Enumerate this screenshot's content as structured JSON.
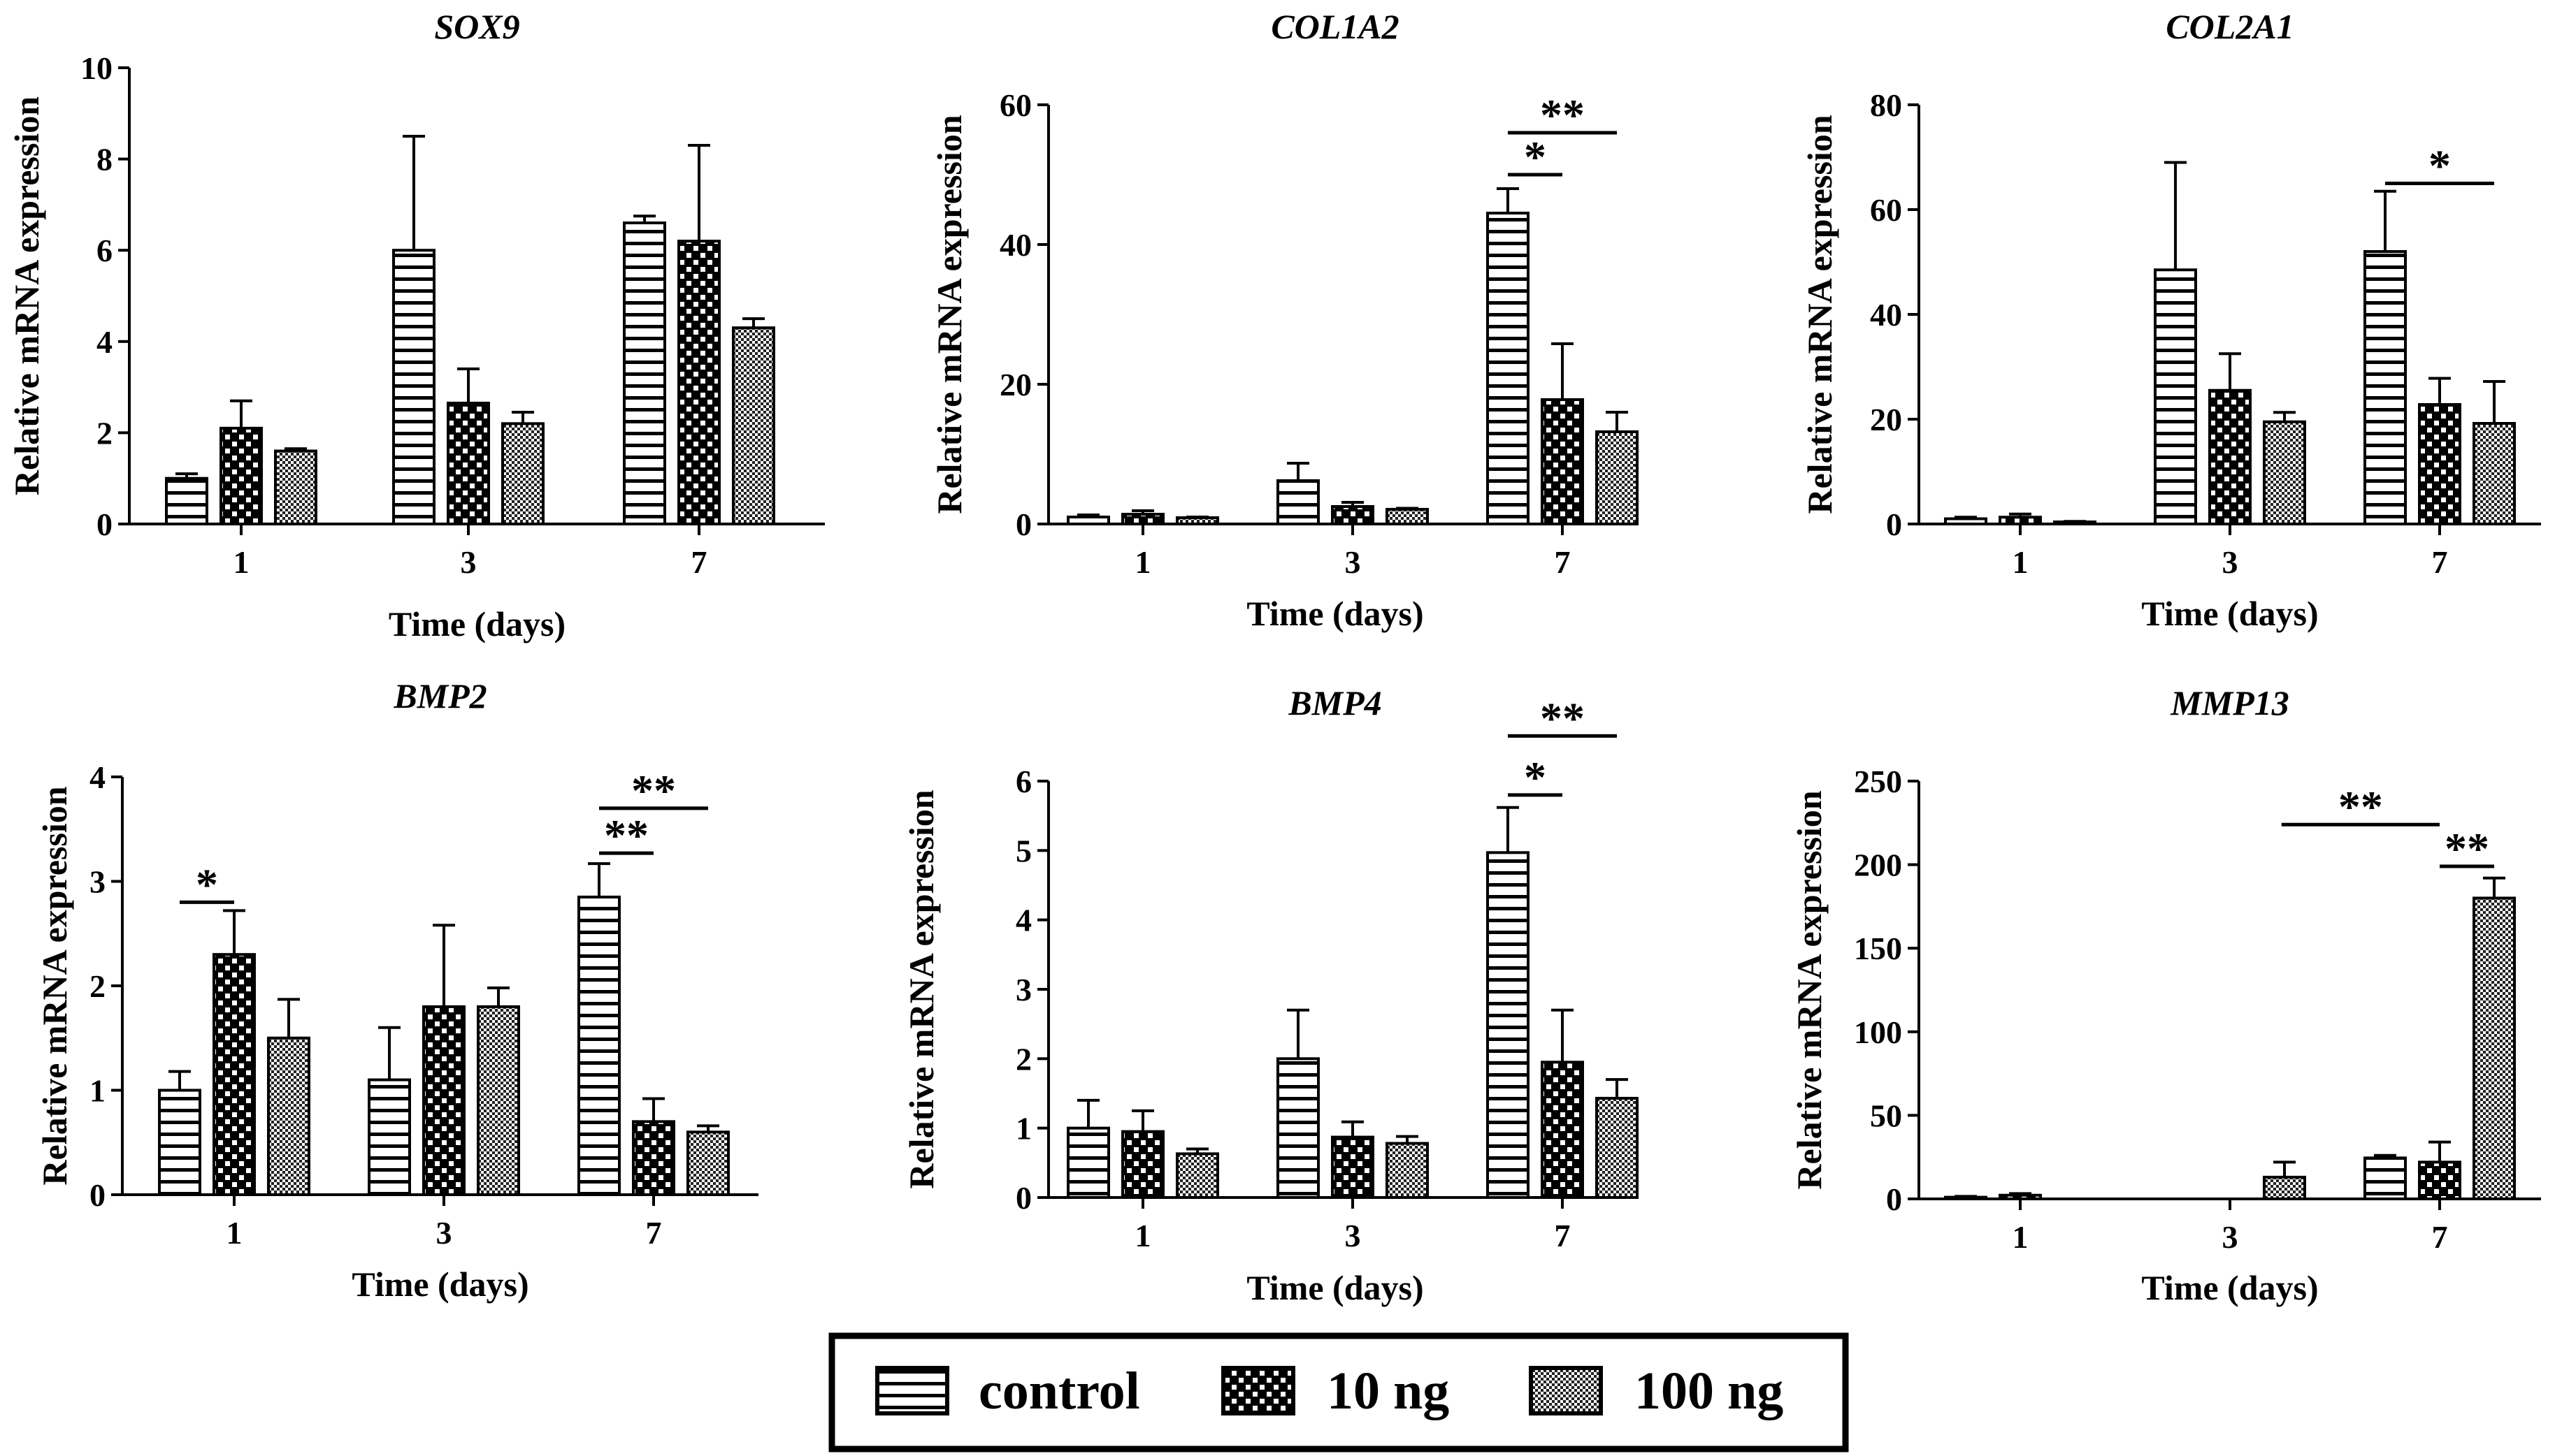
{
  "legend": {
    "items": [
      {
        "key": "control",
        "label": "control",
        "pattern": "hstripe"
      },
      {
        "key": "10ng",
        "label": "10 ng",
        "pattern": "checker"
      },
      {
        "key": "100ng",
        "label": "100 ng",
        "pattern": "dense"
      }
    ]
  },
  "chart_data": [
    {
      "type": "bar",
      "title": "SOX9",
      "xlabel": "Time (days)",
      "ylabel": "Relative mRNA expression",
      "categories": [
        "1",
        "3",
        "7"
      ],
      "ylim": [
        0,
        10
      ],
      "yticks": [
        0,
        2,
        4,
        6,
        8,
        10
      ],
      "series": [
        {
          "name": "control",
          "values": [
            1.0,
            6.0,
            6.6
          ],
          "errors": [
            0.1,
            2.5,
            0.15
          ]
        },
        {
          "name": "10 ng",
          "values": [
            2.1,
            2.65,
            6.2
          ],
          "errors": [
            0.6,
            0.75,
            2.1
          ]
        },
        {
          "name": "100 ng",
          "values": [
            1.6,
            2.2,
            4.3
          ],
          "errors": [
            0.05,
            0.25,
            0.2
          ]
        }
      ],
      "significance": []
    },
    {
      "type": "bar",
      "title": "COL1A2",
      "xlabel": "Time (days)",
      "ylabel": "Relative mRNA expression",
      "categories": [
        "1",
        "3",
        "7"
      ],
      "ylim": [
        0,
        60
      ],
      "yticks": [
        0,
        20,
        40,
        60
      ],
      "series": [
        {
          "name": "control",
          "values": [
            1.0,
            6.2,
            44.5
          ],
          "errors": [
            0.3,
            2.5,
            3.5
          ]
        },
        {
          "name": "10 ng",
          "values": [
            1.4,
            2.5,
            17.8
          ],
          "errors": [
            0.5,
            0.6,
            8.0
          ]
        },
        {
          "name": "100 ng",
          "values": [
            0.9,
            2.1,
            13.2
          ],
          "errors": [
            0.1,
            0.15,
            2.8
          ]
        }
      ],
      "significance": [
        {
          "label": "*",
          "category": "7",
          "from": 0,
          "to": 1,
          "y": 50
        },
        {
          "label": "**",
          "category": "7",
          "from": 0,
          "to": 2,
          "y": 56
        }
      ]
    },
    {
      "type": "bar",
      "title": "COL2A1",
      "xlabel": "Time (days)",
      "ylabel": "Relative mRNA expression",
      "categories": [
        "1",
        "3",
        "7"
      ],
      "ylim": [
        0,
        80
      ],
      "yticks": [
        0,
        20,
        40,
        60,
        80
      ],
      "series": [
        {
          "name": "control",
          "values": [
            1.0,
            48.5,
            52.0
          ],
          "errors": [
            0.3,
            20.5,
            11.5
          ]
        },
        {
          "name": "10 ng",
          "values": [
            1.3,
            25.5,
            22.8
          ],
          "errors": [
            0.6,
            7.0,
            5.0
          ]
        },
        {
          "name": "100 ng",
          "values": [
            0.4,
            19.5,
            19.2
          ],
          "errors": [
            0.1,
            1.8,
            8.0
          ]
        }
      ],
      "significance": [
        {
          "label": "*",
          "category": "7",
          "from": 0,
          "to": 2,
          "y": 65
        }
      ]
    },
    {
      "type": "bar",
      "title": "BMP2",
      "xlabel": "Time (days)",
      "ylabel": "Relative mRNA expression",
      "categories": [
        "1",
        "3",
        "7"
      ],
      "ylim": [
        0,
        4
      ],
      "yticks": [
        0,
        1,
        2,
        3,
        4
      ],
      "series": [
        {
          "name": "control",
          "values": [
            1.0,
            1.1,
            2.85
          ],
          "errors": [
            0.18,
            0.5,
            0.32
          ]
        },
        {
          "name": "10 ng",
          "values": [
            2.3,
            1.8,
            0.7
          ],
          "errors": [
            0.42,
            0.78,
            0.22
          ]
        },
        {
          "name": "100 ng",
          "values": [
            1.5,
            1.8,
            0.6
          ],
          "errors": [
            0.37,
            0.18,
            0.06
          ]
        }
      ],
      "significance": [
        {
          "label": "*",
          "category": "1",
          "from": 0,
          "to": 1,
          "y": 2.8
        },
        {
          "label": "**",
          "category": "7",
          "from": 0,
          "to": 1,
          "y": 3.27
        },
        {
          "label": "**",
          "category": "7",
          "from": 0,
          "to": 2,
          "y": 3.7
        }
      ]
    },
    {
      "type": "bar",
      "title": "BMP4",
      "xlabel": "Time (days)",
      "ylabel": "Relative mRNA expression",
      "categories": [
        "1",
        "3",
        "7"
      ],
      "ylim": [
        0,
        6
      ],
      "yticks": [
        0,
        1,
        2,
        3,
        4,
        5,
        6
      ],
      "series": [
        {
          "name": "control",
          "values": [
            1.0,
            2.0,
            4.97
          ],
          "errors": [
            0.4,
            0.7,
            0.65
          ]
        },
        {
          "name": "10 ng",
          "values": [
            0.95,
            0.87,
            1.95
          ],
          "errors": [
            0.3,
            0.22,
            0.75
          ]
        },
        {
          "name": "100 ng",
          "values": [
            0.63,
            0.78,
            1.43
          ],
          "errors": [
            0.07,
            0.1,
            0.27
          ]
        }
      ],
      "significance": [
        {
          "label": "*",
          "category": "7",
          "from": 0,
          "to": 1,
          "y": 5.8
        },
        {
          "label": "**",
          "category": "7",
          "from": 0,
          "to": 2,
          "y": 6.65
        }
      ]
    },
    {
      "type": "bar",
      "title": "MMP13",
      "xlabel": "Time (days)",
      "ylabel": "Relative mRNA expression",
      "categories": [
        "1",
        "3",
        "7"
      ],
      "ylim": [
        0,
        250
      ],
      "yticks": [
        0,
        50,
        100,
        150,
        200,
        250
      ],
      "series": [
        {
          "name": "control",
          "values": [
            1.0,
            0.0,
            24.5
          ],
          "errors": [
            0.5,
            0.0,
            1.5
          ]
        },
        {
          "name": "10 ng",
          "values": [
            2.2,
            0.0,
            22.0
          ],
          "errors": [
            1.0,
            0.0,
            12.0
          ]
        },
        {
          "name": "100 ng",
          "values": [
            0.0,
            13.0,
            180.0
          ],
          "errors": [
            0.0,
            9.0,
            12.0
          ]
        }
      ],
      "significance": [
        {
          "label": "**",
          "category": "7",
          "from": 1,
          "to": 2,
          "y": 199
        },
        {
          "label": "**",
          "category": "7",
          "from": -1.9,
          "to": 1,
          "y": 224
        }
      ]
    }
  ]
}
